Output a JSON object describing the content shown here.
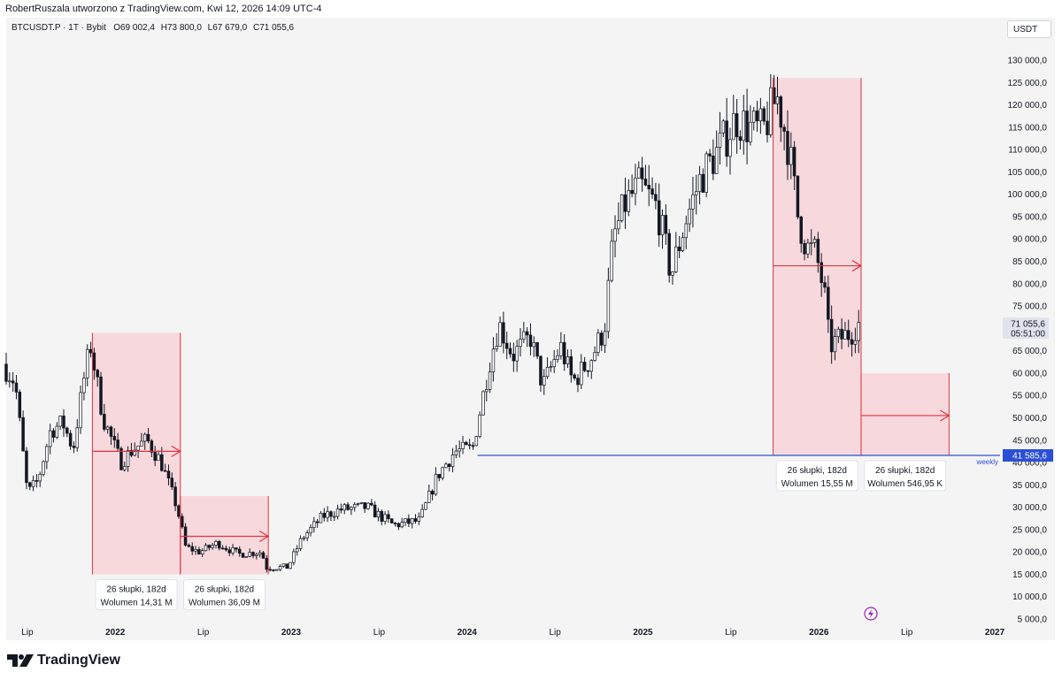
{
  "header": {
    "attribution": "RobertRuszala utworzono z TradingView.com, Kwi 12, 2026 14:09 UTC-4"
  },
  "symbol": {
    "name": "BTCUSDT.P · 1T · Bybit",
    "o_label": "O",
    "o_value": "69 002,4",
    "h_label": "H",
    "h_value": "73 800,0",
    "l_label": "L",
    "l_value": "67 679,0",
    "c_label": "C",
    "c_value": "71 055,6"
  },
  "currency": "USDT",
  "logo": {
    "text": "TradingView",
    "icon": "tradingview-logo-icon"
  },
  "colors": {
    "up": "#ffffff",
    "down": "#131722",
    "zone_fill": "#f7d4d8",
    "zone_line": "#e0333f",
    "support": "#2a4fd6",
    "price_tag": "#e0e3eb"
  },
  "chart_data": {
    "type": "candlestick",
    "title": "BTCUSDT.P 1T Bybit",
    "ylim": [
      2000,
      135000
    ],
    "y_ticks": [
      5000,
      10000,
      15000,
      20000,
      25000,
      30000,
      35000,
      40000,
      45000,
      50000,
      55000,
      60000,
      65000,
      70000,
      75000,
      80000,
      85000,
      90000,
      95000,
      100000,
      105000,
      110000,
      115000,
      120000,
      125000,
      130000
    ],
    "y_tick_labels": [
      "5 000,0",
      "10 000,0",
      "15 000,0",
      "20 000,0",
      "25 000,0",
      "30 000,0",
      "35 000,0",
      "40 000,0",
      "45 000,0",
      "50 000,0",
      "55 000,0",
      "60 000,0",
      "65 000,0",
      "70 000,0",
      "75 000,0",
      "80 000,0",
      "85 000,0",
      "90 000,0",
      "95 000,0",
      "100 000,0",
      "105 000,0",
      "110 000,0",
      "115 000,0",
      "120 000,0",
      "125 000,0",
      "130 000,0"
    ],
    "x_range": [
      2021.38,
      2027.03
    ],
    "x_ticks": [
      {
        "t": 2021.5,
        "label": "Lip",
        "bold": false
      },
      {
        "t": 2022.0,
        "label": "2022",
        "bold": true
      },
      {
        "t": 2022.5,
        "label": "Lip",
        "bold": false
      },
      {
        "t": 2023.0,
        "label": "2023",
        "bold": true
      },
      {
        "t": 2023.5,
        "label": "Lip",
        "bold": false
      },
      {
        "t": 2024.0,
        "label": "2024",
        "bold": true
      },
      {
        "t": 2024.5,
        "label": "Lip",
        "bold": false
      },
      {
        "t": 2025.0,
        "label": "2025",
        "bold": true
      },
      {
        "t": 2025.5,
        "label": "Lip",
        "bold": false
      },
      {
        "t": 2026.0,
        "label": "2026",
        "bold": true
      },
      {
        "t": 2026.5,
        "label": "Lip",
        "bold": false
      },
      {
        "t": 2027.0,
        "label": "2027",
        "bold": true
      }
    ],
    "price_path": [
      [
        2021.38,
        62000
      ],
      [
        2021.45,
        58000
      ],
      [
        2021.52,
        33000
      ],
      [
        2021.58,
        36000
      ],
      [
        2021.65,
        47000
      ],
      [
        2021.72,
        49000
      ],
      [
        2021.78,
        43000
      ],
      [
        2021.85,
        61000
      ],
      [
        2021.88,
        66000
      ],
      [
        2021.95,
        50000
      ],
      [
        2022.05,
        40000
      ],
      [
        2022.12,
        43000
      ],
      [
        2022.2,
        45000
      ],
      [
        2022.28,
        40000
      ],
      [
        2022.37,
        30000
      ],
      [
        2022.42,
        21000
      ],
      [
        2022.5,
        20000
      ],
      [
        2022.6,
        22000
      ],
      [
        2022.72,
        19500
      ],
      [
        2022.85,
        20000
      ],
      [
        2022.88,
        16500
      ],
      [
        2023.0,
        16600
      ],
      [
        2023.08,
        23000
      ],
      [
        2023.2,
        28000
      ],
      [
        2023.3,
        29500
      ],
      [
        2023.45,
        30000
      ],
      [
        2023.6,
        26000
      ],
      [
        2023.75,
        27000
      ],
      [
        2023.85,
        37000
      ],
      [
        2023.95,
        42500
      ],
      [
        2024.05,
        43000
      ],
      [
        2024.15,
        63000
      ],
      [
        2024.2,
        71000
      ],
      [
        2024.28,
        64000
      ],
      [
        2024.38,
        68000
      ],
      [
        2024.45,
        57000
      ],
      [
        2024.55,
        66000
      ],
      [
        2024.62,
        58000
      ],
      [
        2024.72,
        63000
      ],
      [
        2024.8,
        70000
      ],
      [
        2024.85,
        90000
      ],
      [
        2024.92,
        98000
      ],
      [
        2025.0,
        102000
      ],
      [
        2025.1,
        97000
      ],
      [
        2025.18,
        82000
      ],
      [
        2025.26,
        94000
      ],
      [
        2025.35,
        104000
      ],
      [
        2025.45,
        110000
      ],
      [
        2025.55,
        117000
      ],
      [
        2025.62,
        115000
      ],
      [
        2025.7,
        114000
      ],
      [
        2025.78,
        122000
      ],
      [
        2025.85,
        110000
      ],
      [
        2025.9,
        95000
      ],
      [
        2025.95,
        88000
      ],
      [
        2026.0,
        87000
      ],
      [
        2026.05,
        78000
      ],
      [
        2026.08,
        66000
      ],
      [
        2026.15,
        68000
      ],
      [
        2026.2,
        69000
      ],
      [
        2026.24,
        71055
      ]
    ],
    "last_price": {
      "value": 71055.6,
      "label": "71 055,6",
      "countdown": "05:51:00"
    },
    "support_line": {
      "value": 41585.6,
      "label": "41 585,6",
      "tag": "weekly",
      "from": 2024.06
    },
    "zones": [
      {
        "x0": 2021.87,
        "x1": 2022.37,
        "y0": 15000,
        "y1": 69000,
        "arrow_y": 42500,
        "top_fill": true,
        "label1": "26 słupki, 182d",
        "label2": "Wolumen 14,31 M",
        "label_below": 15000
      },
      {
        "x0": 2022.37,
        "x1": 2022.87,
        "y0": 15000,
        "y1": 32500,
        "arrow_y": 23500,
        "top_fill": true,
        "label1": "26 słupki, 182d",
        "label2": "Wolumen 36,09 M",
        "label_below": 15000
      },
      {
        "x0": 2025.74,
        "x1": 2026.24,
        "y0": 41585,
        "y1": 126000,
        "arrow_y": 84000,
        "top_fill": true,
        "label1": "26 słupki, 182d",
        "label2": "Wolumen 15,55 M",
        "label_below": 41585
      },
      {
        "x0": 2026.24,
        "x1": 2026.74,
        "y0": 41585,
        "y1": 60000,
        "arrow_y": 50500,
        "top_fill": true,
        "label1": "26 słupki, 182d",
        "label2": "Wolumen 546,95 K",
        "label_below": 41585
      }
    ]
  }
}
